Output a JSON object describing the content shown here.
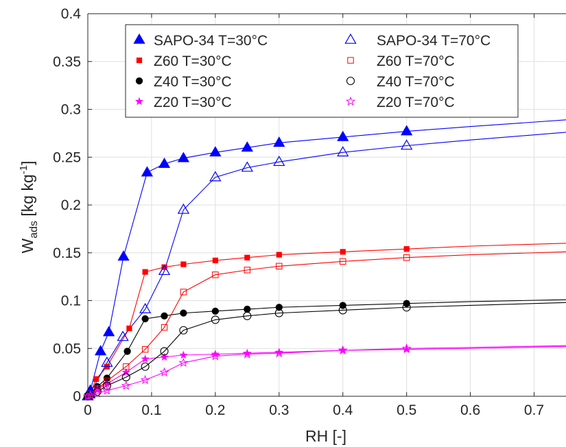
{
  "chart_data": {
    "type": "line",
    "title": "",
    "xlabel": "RH [-]",
    "ylabel": {
      "main": "W",
      "subscript": "ads",
      "units_prefix": " [kg kg",
      "units_sup": "-1",
      "units_suffix": "]"
    },
    "xlim": [
      0,
      0.75
    ],
    "ylim": [
      0,
      0.4
    ],
    "xticks": [
      0,
      0.1,
      0.2,
      0.3,
      0.4,
      0.5,
      0.6,
      0.7
    ],
    "xticklabels": [
      "0",
      "0.1",
      "0.2",
      "0.3",
      "0.4",
      "0.5",
      "0.6",
      "0.7"
    ],
    "yticks": [
      0,
      0.05,
      0.1,
      0.15,
      0.2,
      0.25,
      0.3,
      0.35,
      0.4
    ],
    "yticklabels": [
      "0",
      "0.05",
      "0.1",
      "0.15",
      "0.2",
      "0.25",
      "0.3",
      "0.35",
      "0.4"
    ],
    "grid": true,
    "legend_location": "top-right",
    "colors": {
      "blue": "#0000ff",
      "red": "#ff0000",
      "black": "#000000",
      "magenta": "#ff00ff"
    },
    "series": [
      {
        "name": "SAPO-34 T=30°C",
        "color": "#0000ff",
        "marker": "triangle",
        "filled": true,
        "x": [
          0,
          0.004,
          0.02,
          0.033,
          0.056,
          0.093,
          0.12,
          0.15,
          0.2,
          0.25,
          0.3,
          0.4,
          0.5
        ],
        "y": [
          0,
          0.006,
          0.047,
          0.067,
          0.146,
          0.234,
          0.243,
          0.249,
          0.255,
          0.26,
          0.265,
          0.271,
          0.277
        ],
        "line_x": [
          0,
          0.004,
          0.02,
          0.033,
          0.056,
          0.093,
          0.12,
          0.15,
          0.2,
          0.25,
          0.3,
          0.4,
          0.5,
          0.6,
          0.75
        ],
        "line_y": [
          0,
          0.006,
          0.047,
          0.067,
          0.146,
          0.234,
          0.243,
          0.249,
          0.255,
          0.26,
          0.265,
          0.271,
          0.277,
          0.282,
          0.289
        ]
      },
      {
        "name": "Z60 T=30°C",
        "color": "#ff0000",
        "marker": "square",
        "filled": true,
        "x": [
          0,
          0.003,
          0.013,
          0.03,
          0.065,
          0.09,
          0.12,
          0.15,
          0.2,
          0.25,
          0.3,
          0.4,
          0.5
        ],
        "y": [
          0,
          0.002,
          0.018,
          0.031,
          0.071,
          0.13,
          0.135,
          0.138,
          0.142,
          0.145,
          0.148,
          0.151,
          0.154
        ],
        "line_x": [
          0,
          0.003,
          0.013,
          0.03,
          0.065,
          0.09,
          0.12,
          0.15,
          0.2,
          0.25,
          0.3,
          0.4,
          0.5,
          0.6,
          0.75
        ],
        "line_y": [
          0,
          0.002,
          0.018,
          0.031,
          0.071,
          0.13,
          0.135,
          0.138,
          0.142,
          0.145,
          0.148,
          0.151,
          0.154,
          0.157,
          0.16
        ]
      },
      {
        "name": "Z40 T=30°C",
        "color": "#000000",
        "marker": "circle",
        "filled": true,
        "x": [
          0,
          0.004,
          0.015,
          0.03,
          0.062,
          0.09,
          0.12,
          0.15,
          0.2,
          0.25,
          0.3,
          0.4,
          0.5
        ],
        "y": [
          0,
          0.002,
          0.01,
          0.019,
          0.047,
          0.081,
          0.084,
          0.087,
          0.089,
          0.091,
          0.093,
          0.095,
          0.097
        ],
        "line_x": [
          0,
          0.004,
          0.015,
          0.03,
          0.062,
          0.09,
          0.12,
          0.15,
          0.2,
          0.25,
          0.3,
          0.4,
          0.5,
          0.6,
          0.75
        ],
        "line_y": [
          0,
          0.002,
          0.01,
          0.019,
          0.047,
          0.081,
          0.084,
          0.087,
          0.089,
          0.091,
          0.093,
          0.095,
          0.097,
          0.099,
          0.101
        ]
      },
      {
        "name": "Z20 T=30°C",
        "color": "#ff00ff",
        "marker": "star",
        "filled": true,
        "x": [
          0,
          0.003,
          0.015,
          0.03,
          0.06,
          0.09,
          0.12,
          0.15,
          0.2,
          0.25,
          0.3,
          0.4,
          0.5
        ],
        "y": [
          0,
          0.002,
          0.008,
          0.013,
          0.025,
          0.039,
          0.041,
          0.043,
          0.044,
          0.045,
          0.046,
          0.048,
          0.049
        ],
        "line_x": [
          0,
          0.003,
          0.015,
          0.03,
          0.06,
          0.09,
          0.12,
          0.15,
          0.2,
          0.25,
          0.3,
          0.4,
          0.5,
          0.6,
          0.75
        ],
        "line_y": [
          0,
          0.002,
          0.008,
          0.013,
          0.025,
          0.039,
          0.041,
          0.043,
          0.044,
          0.045,
          0.046,
          0.048,
          0.049,
          0.05,
          0.052
        ]
      },
      {
        "name": "SAPO-34 T=70°C",
        "color": "#0000ff",
        "marker": "triangle",
        "filled": false,
        "x": [
          0,
          0.003,
          0.03,
          0.055,
          0.09,
          0.12,
          0.15,
          0.2,
          0.25,
          0.3,
          0.4,
          0.5
        ],
        "y": [
          0,
          0.002,
          0.035,
          0.062,
          0.091,
          0.131,
          0.195,
          0.229,
          0.239,
          0.245,
          0.255,
          0.262
        ],
        "line_x": [
          0,
          0.003,
          0.03,
          0.055,
          0.09,
          0.12,
          0.15,
          0.2,
          0.25,
          0.3,
          0.4,
          0.5,
          0.6,
          0.75
        ],
        "line_y": [
          0,
          0.002,
          0.035,
          0.062,
          0.091,
          0.131,
          0.195,
          0.229,
          0.239,
          0.245,
          0.255,
          0.262,
          0.268,
          0.276
        ]
      },
      {
        "name": "Z60 T=70°C",
        "color": "#ff0000",
        "marker": "square",
        "filled": false,
        "x": [
          0,
          0.004,
          0.015,
          0.03,
          0.06,
          0.09,
          0.12,
          0.15,
          0.2,
          0.25,
          0.3,
          0.4,
          0.5
        ],
        "y": [
          0,
          0.002,
          0.008,
          0.016,
          0.031,
          0.049,
          0.072,
          0.109,
          0.127,
          0.132,
          0.136,
          0.141,
          0.145
        ],
        "line_x": [
          0,
          0.004,
          0.015,
          0.03,
          0.06,
          0.09,
          0.12,
          0.15,
          0.2,
          0.25,
          0.3,
          0.4,
          0.5,
          0.6,
          0.75
        ],
        "line_y": [
          0,
          0.002,
          0.008,
          0.016,
          0.031,
          0.049,
          0.072,
          0.109,
          0.127,
          0.132,
          0.136,
          0.141,
          0.145,
          0.148,
          0.151
        ]
      },
      {
        "name": "Z40 T=70°C",
        "color": "#000000",
        "marker": "circle",
        "filled": false,
        "x": [
          0,
          0.004,
          0.015,
          0.03,
          0.06,
          0.09,
          0.12,
          0.15,
          0.2,
          0.25,
          0.3,
          0.4,
          0.5
        ],
        "y": [
          0,
          0.001,
          0.005,
          0.011,
          0.02,
          0.031,
          0.047,
          0.069,
          0.08,
          0.084,
          0.087,
          0.09,
          0.093
        ],
        "line_x": [
          0,
          0.004,
          0.015,
          0.03,
          0.06,
          0.09,
          0.12,
          0.15,
          0.2,
          0.25,
          0.3,
          0.4,
          0.5,
          0.6,
          0.75
        ],
        "line_y": [
          0,
          0.001,
          0.005,
          0.011,
          0.02,
          0.031,
          0.047,
          0.069,
          0.08,
          0.084,
          0.087,
          0.09,
          0.093,
          0.095,
          0.098
        ]
      },
      {
        "name": "Z20 T=70°C",
        "color": "#ff00ff",
        "marker": "star",
        "filled": false,
        "x": [
          0,
          0.004,
          0.015,
          0.03,
          0.06,
          0.09,
          0.12,
          0.15,
          0.2,
          0.25,
          0.3,
          0.4,
          0.5
        ],
        "y": [
          0,
          0.001,
          0.003,
          0.006,
          0.011,
          0.017,
          0.025,
          0.035,
          0.042,
          0.044,
          0.045,
          0.048,
          0.05
        ],
        "line_x": [
          0,
          0.004,
          0.015,
          0.03,
          0.06,
          0.09,
          0.12,
          0.15,
          0.2,
          0.25,
          0.3,
          0.4,
          0.5,
          0.6,
          0.75
        ],
        "line_y": [
          0,
          0.001,
          0.003,
          0.006,
          0.011,
          0.017,
          0.025,
          0.035,
          0.042,
          0.044,
          0.045,
          0.048,
          0.05,
          0.051,
          0.053
        ]
      }
    ]
  }
}
